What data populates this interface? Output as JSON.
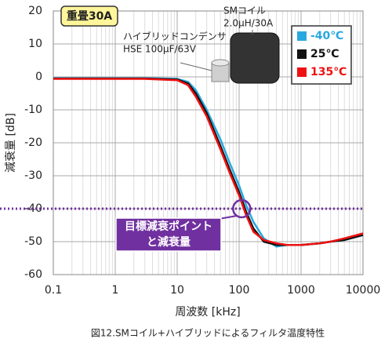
{
  "chart_data": {
    "type": "line",
    "log_x": true,
    "grid": true,
    "xlabel": "周波数 [kHz]",
    "ylabel": "減衰量 [dB]",
    "caption": "図12.SMコイル+ハイブリッドによるフィルタ温度特性",
    "badge": "重畳30A",
    "component_labels": [
      "SMコイル",
      "2.0μH/30A",
      "ハイブリッドコンデンサ",
      "HSE 100μF/63V"
    ],
    "annotation": {
      "lines": [
        "目標減衰ポイント",
        "と減衰量"
      ],
      "x": 110,
      "y": -40
    },
    "reference_line": {
      "value": -40,
      "color": "#7030a0"
    },
    "legend": "top-right",
    "x": [
      0.1,
      0.3,
      1,
      3,
      10,
      15,
      20,
      30,
      50,
      70,
      100,
      130,
      170,
      250,
      400,
      600,
      1000,
      2000,
      3000,
      5000,
      10000
    ],
    "series": [
      {
        "name": "-40℃",
        "color": "#29a8e0",
        "values": [
          -0.4,
          -0.4,
          -0.4,
          -0.4,
          -0.6,
          -1.5,
          -4,
          -10,
          -19,
          -26,
          -33,
          -39,
          -44,
          -49,
          -51.5,
          -51,
          -51,
          -50.5,
          -50,
          -49.5,
          -48
        ]
      },
      {
        "name": "25℃",
        "color": "#111111",
        "values": [
          -0.5,
          -0.5,
          -0.5,
          -0.5,
          -0.8,
          -2,
          -5,
          -11,
          -21,
          -28,
          -35,
          -41,
          -46,
          -50,
          -51,
          -51,
          -51,
          -50.5,
          -50,
          -49.5,
          -48
        ]
      },
      {
        "name": "135℃",
        "color": "#ee1111",
        "values": [
          -0.6,
          -0.6,
          -0.6,
          -0.6,
          -1,
          -2.5,
          -6,
          -12,
          -22,
          -29,
          -36,
          -42,
          -47,
          -49.5,
          -50.5,
          -51,
          -51,
          -50.5,
          -50,
          -49,
          -47.5
        ]
      }
    ],
    "xlim": [
      0.1,
      10000
    ],
    "xticks": [
      0.1,
      1,
      10,
      100,
      1000,
      10000
    ],
    "ylim": [
      -60,
      20
    ],
    "yticks": [
      20,
      10,
      0,
      -10,
      -20,
      -30,
      -40,
      -50,
      -60
    ]
  }
}
